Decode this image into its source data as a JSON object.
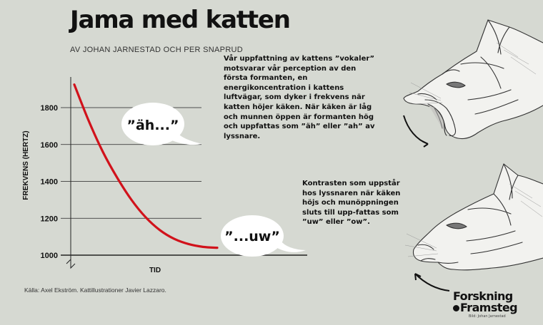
{
  "header": {
    "title": "Jama med katten",
    "byline": "AV JOHAN JARNESTAD OCH PER SNAPRUD"
  },
  "body_text": {
    "paragraph1": "Vår uppfattning av kattens ”vokaler” motsvarar vår perception av den första formanten, en energikoncentration i kattens luftvägar, som dyker i frekvens när katten höjer käken. När käken är låg och munnen öppen är formanten hög och uppfattas som ”äh” eller ”ah” av lyssnare.",
    "paragraph2": "Kontrasten som uppstår hos lyssnaren när käken höjs och munöppningen sluts till upp-fattas som ”uw” eller ”ow”."
  },
  "source": "Källa: Axel Ekström. Kattillustrationer Javier Lazzaro.",
  "logo": {
    "line1": "Forskning",
    "line2": "Framsteg",
    "sub": "Bild: Johan Jarnestad"
  },
  "colors": {
    "background": "#d6d9d2",
    "curve": "#d1121b",
    "gridline": "#222222",
    "bubble": "#ffffff"
  },
  "chart_data": {
    "type": "line",
    "ylabel": "FREKVENS (HERTZ)",
    "xlabel": "TID",
    "ylim": [
      950,
      1980
    ],
    "yticks": [
      1000,
      1200,
      1400,
      1600,
      1800
    ],
    "grid": true,
    "series": [
      {
        "x": [
          0,
          0.1,
          0.2,
          0.3,
          0.4,
          0.5,
          0.6,
          0.7,
          0.8,
          0.9,
          1.0
        ],
        "values": [
          1925,
          1730,
          1560,
          1420,
          1300,
          1205,
          1135,
          1088,
          1060,
          1045,
          1040
        ]
      }
    ],
    "annotations": [
      {
        "text": "”äh...”",
        "x": 0.42,
        "y": 1720
      },
      {
        "text": "”...uw”",
        "x": 1.2,
        "y": 1105
      }
    ]
  }
}
